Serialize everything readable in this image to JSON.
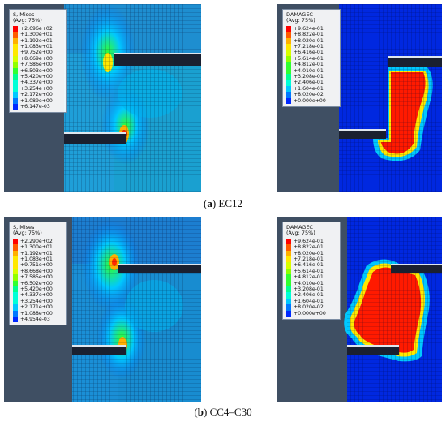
{
  "caption_a": {
    "letter": "a",
    "text": "EC12"
  },
  "caption_b": {
    "letter": "b",
    "text": "CC4–C30"
  },
  "colors": {
    "background": "#3f4f63",
    "scale": [
      "#ff0000",
      "#ff5a00",
      "#ffb000",
      "#ffe800",
      "#d8ff00",
      "#90ff00",
      "#30ff30",
      "#00ff90",
      "#00ffd8",
      "#00c8ff",
      "#0078ff",
      "#0028ff"
    ],
    "mesh_low": "#0020c0",
    "slot": "#1a2030"
  },
  "legends": {
    "ec12_mises": {
      "title1": "S, Mises",
      "title2": "(Avg: 75%)",
      "values": [
        "+2.696e+02",
        "+1.300e+01",
        "+1.192e+01",
        "+1.083e+01",
        "+9.752e+00",
        "+8.669e+00",
        "+7.586e+00",
        "+6.503e+00",
        "+5.420e+00",
        "+4.337e+00",
        "+3.254e+00",
        "+2.172e+00",
        "+1.089e+00",
        "+6.147e-03"
      ]
    },
    "ec12_damage": {
      "title1": "DAMAGEC",
      "title2": "(Avg: 75%)",
      "values": [
        "+9.624e-01",
        "+8.822e-01",
        "+8.020e-01",
        "+7.218e-01",
        "+6.416e-01",
        "+5.614e-01",
        "+4.812e-01",
        "+4.010e-01",
        "+3.208e-01",
        "+2.406e-01",
        "+1.604e-01",
        "+8.020e-02",
        "+0.000e+00"
      ]
    },
    "cc4_mises": {
      "title1": "S, Mises",
      "title2": "(Avg: 75%)",
      "values": [
        "+2.290e+02",
        "+1.300e+01",
        "+1.192e+01",
        "+1.083e+01",
        "+9.751e+00",
        "+8.668e+00",
        "+7.585e+00",
        "+6.502e+00",
        "+5.420e+00",
        "+4.337e+00",
        "+3.254e+00",
        "+2.171e+00",
        "+1.088e+00",
        "+4.954e-03"
      ]
    },
    "cc4_damage": {
      "title1": "DAMAGEC",
      "title2": "(Avg: 75%)",
      "values": [
        "+9.624e-01",
        "+8.822e-01",
        "+8.020e-01",
        "+7.218e-01",
        "+6.416e-01",
        "+5.614e-01",
        "+4.812e-01",
        "+4.010e-01",
        "+3.208e-01",
        "+2.406e-01",
        "+1.604e-01",
        "+8.020e-02",
        "+0.000e+00"
      ]
    }
  }
}
